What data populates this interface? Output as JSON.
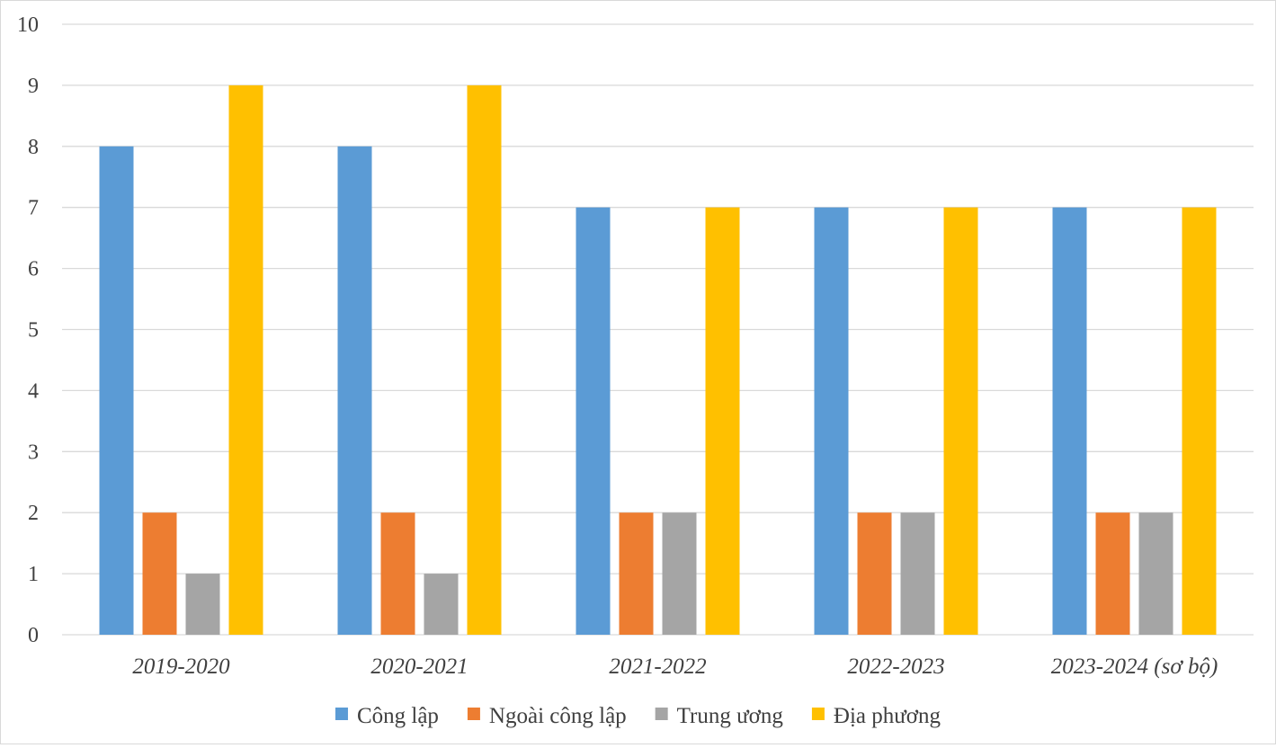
{
  "chart_data": {
    "type": "bar",
    "title": "",
    "xlabel": "",
    "ylabel": "",
    "categories": [
      "2019-2020",
      "2020-2021",
      "2021-2022",
      "2022-2023",
      "2023-2024 (sơ bộ)"
    ],
    "series": [
      {
        "name": "Công lập",
        "color": "#5b9bd5",
        "values": [
          8,
          8,
          7,
          7,
          7
        ]
      },
      {
        "name": "Ngoài công lập",
        "color": "#ed7d31",
        "values": [
          2,
          2,
          2,
          2,
          2
        ]
      },
      {
        "name": "Trung ương",
        "color": "#a5a5a5",
        "values": [
          1,
          1,
          2,
          2,
          2
        ]
      },
      {
        "name": "Địa phương",
        "color": "#ffc000",
        "values": [
          9,
          9,
          7,
          7,
          7
        ]
      }
    ],
    "ylim": [
      0,
      10
    ],
    "yticks": [
      "0",
      "1",
      "2",
      "3",
      "4",
      "5",
      "6",
      "7",
      "8",
      "9",
      "10"
    ],
    "grid": true,
    "gridline_color": "#d9d9d9",
    "legend_position": "bottom"
  }
}
